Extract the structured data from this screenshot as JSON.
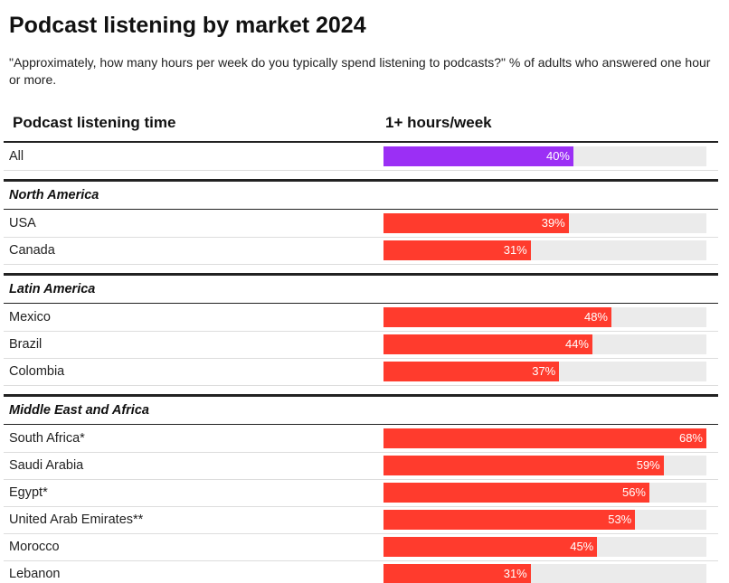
{
  "chart_data": {
    "type": "bar",
    "title": "Podcast listening by market 2024",
    "subtitle": "\"Approximately, how many hours per week do you typically spend listening to podcasts?\" % of adults who answered one hour or more.",
    "category_header": "Podcast listening time",
    "value_header": "1+ hours/week",
    "xlim": [
      0,
      68
    ],
    "track_color": "#ebebeb",
    "categories": [
      "All"
    ],
    "values": [
      40
    ],
    "value_labels": [
      "40%"
    ],
    "color": "#9b2ff5",
    "groups": [
      {
        "name": "North America",
        "color": "#ff3b2d",
        "categories": [
          "USA",
          "Canada"
        ],
        "values": [
          39,
          31
        ],
        "value_labels": [
          "39%",
          "31%"
        ]
      },
      {
        "name": "Latin America",
        "color": "#ff3b2d",
        "categories": [
          "Mexico",
          "Brazil",
          "Colombia"
        ],
        "values": [
          48,
          44,
          37
        ],
        "value_labels": [
          "48%",
          "44%",
          "37%"
        ]
      },
      {
        "name": "Middle East and Africa",
        "color": "#ff3b2d",
        "categories": [
          "South Africa*",
          "Saudi Arabia",
          "Egypt*",
          "United Arab Emirates**",
          "Morocco",
          "Lebanon"
        ],
        "values": [
          68,
          59,
          56,
          53,
          45,
          31
        ],
        "value_labels": [
          "68%",
          "59%",
          "56%",
          "53%",
          "45%",
          "31%"
        ]
      }
    ]
  }
}
